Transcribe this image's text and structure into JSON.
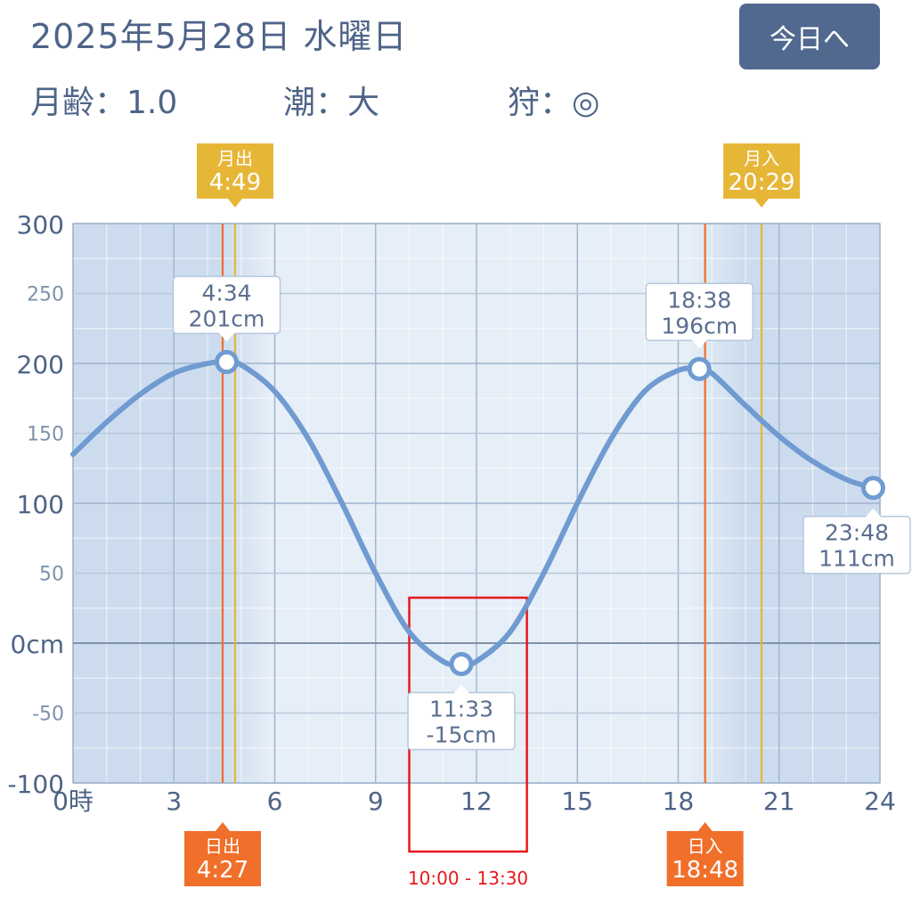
{
  "header": {
    "date": "2025年5月28日 水曜日",
    "today_button": "今日へ",
    "moon_age": "月齢：1.0",
    "tide_type": "潮：大",
    "fishing": "狩：◎"
  },
  "chart_data": {
    "type": "line",
    "x_unit_label": "時",
    "xlim": [
      0,
      24
    ],
    "ylim": [
      -100,
      300
    ],
    "x_ticks": [
      0,
      3,
      6,
      9,
      12,
      15,
      18,
      21,
      24
    ],
    "x_tick_labels": [
      "0時",
      "3",
      "6",
      "9",
      "12",
      "15",
      "18",
      "21",
      "24"
    ],
    "y_ticks": [
      300,
      250,
      200,
      150,
      100,
      50,
      0,
      -50,
      -100
    ],
    "y_tick_labels": [
      "300",
      "250",
      "200",
      "150",
      "100",
      "50",
      "0cm",
      "-50",
      "-100"
    ],
    "series": [
      {
        "x": [
          0,
          1,
          2,
          3,
          4,
          4.57,
          5,
          6,
          7,
          8,
          9,
          10,
          11,
          11.55,
          12,
          13,
          14,
          15,
          16,
          17,
          18,
          18.63,
          19,
          20,
          21,
          22,
          23,
          23.8
        ],
        "y": [
          135,
          158,
          178,
          193,
          200,
          201,
          199,
          180,
          146,
          100,
          50,
          8,
          -13,
          -15,
          -13,
          8,
          50,
          100,
          146,
          180,
          195,
          196,
          193,
          170,
          148,
          130,
          117,
          111
        ]
      }
    ],
    "extremes": [
      {
        "x": 4.57,
        "y": 201,
        "time": "4:34",
        "height": "201cm"
      },
      {
        "x": 11.55,
        "y": -15,
        "time": "11:33",
        "height": "-15cm"
      },
      {
        "x": 18.63,
        "y": 196,
        "time": "18:38",
        "height": "196cm"
      },
      {
        "x": 23.8,
        "y": 111,
        "time": "23:48",
        "height": "111cm"
      }
    ],
    "sun_moon": [
      {
        "label": "月出",
        "time": "4:49",
        "x": 4.82,
        "kind": "moon",
        "position": "top"
      },
      {
        "label": "月入",
        "time": "20:29",
        "x": 20.48,
        "kind": "moon",
        "position": "top"
      },
      {
        "label": "日出",
        "time": "4:27",
        "x": 4.45,
        "kind": "sun",
        "position": "bottom"
      },
      {
        "label": "日入",
        "time": "18:48",
        "x": 18.8,
        "kind": "sun",
        "position": "bottom"
      }
    ],
    "highlight": {
      "x_start": 10,
      "x_end": 13.5,
      "label": "10:00 - 13:30"
    },
    "colors": {
      "line": "#6f9bd1",
      "plot_bg": "#e6eef7",
      "night_bg": "#ccdcee",
      "moon": "#e6b637",
      "sun": "#f06f2a",
      "highlight": "#e8191c"
    }
  }
}
